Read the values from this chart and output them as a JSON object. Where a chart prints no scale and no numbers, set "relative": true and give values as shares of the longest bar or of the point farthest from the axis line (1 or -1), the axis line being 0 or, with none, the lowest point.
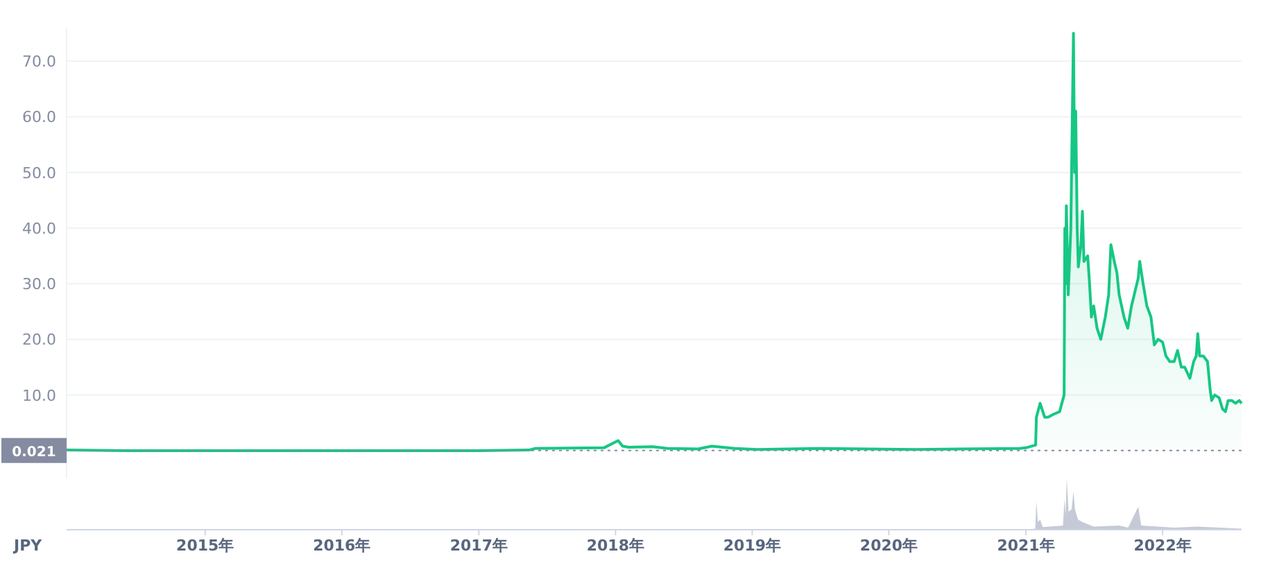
{
  "chart_data": [
    {
      "type": "area",
      "ylabel": "JPY",
      "xlim": [
        "2013-12-27",
        "2022-07-31"
      ],
      "ylim": [
        -5,
        76
      ],
      "yticks": [
        {
          "value": 10,
          "label": "10.0"
        },
        {
          "value": 20,
          "label": "20.0"
        },
        {
          "value": 30,
          "label": "30.0"
        },
        {
          "value": 40,
          "label": "40.0"
        },
        {
          "value": 50,
          "label": "50.0"
        },
        {
          "value": 60,
          "label": "60.0"
        },
        {
          "value": 70,
          "label": "70.0"
        }
      ],
      "grid": "y",
      "tick_labels": "y",
      "ref_lines": [
        {
          "axis": "y",
          "value": 0.021,
          "label": "0.021",
          "color": "#858ca2",
          "line_style": "dotted"
        }
      ],
      "series": [
        {
          "color": "#16c784",
          "x": [
            "2013-12-27",
            "2014-06-01",
            "2015-01-01",
            "2016-01-01",
            "2017-01-01",
            "2017-05-15",
            "2017-06-01",
            "2017-12-01",
            "2018-01-08",
            "2018-01-20",
            "2018-02-05",
            "2018-04-10",
            "2018-05-20",
            "2018-08-10",
            "2018-09-15",
            "2018-11-15",
            "2019-01-15",
            "2019-07-01",
            "2020-03-15",
            "2020-07-15",
            "2020-12-15",
            "2021-01-01",
            "2021-01-27",
            "2021-01-29",
            "2021-02-08",
            "2021-02-20",
            "2021-03-01",
            "2021-03-15",
            "2021-04-01",
            "2021-04-13",
            "2021-04-15",
            "2021-04-17",
            "2021-04-19",
            "2021-04-24",
            "2021-05-01",
            "2021-05-08",
            "2021-05-11",
            "2021-05-14",
            "2021-05-18",
            "2021-05-21",
            "2021-05-28",
            "2021-06-01",
            "2021-06-05",
            "2021-06-15",
            "2021-06-20",
            "2021-06-25",
            "2021-07-01",
            "2021-07-10",
            "2021-07-20",
            "2021-08-01",
            "2021-08-10",
            "2021-08-16",
            "2021-08-25",
            "2021-09-01",
            "2021-09-07",
            "2021-09-20",
            "2021-09-30",
            "2021-10-10",
            "2021-10-28",
            "2021-11-01",
            "2021-11-10",
            "2021-11-20",
            "2021-12-01",
            "2021-12-10",
            "2021-12-20",
            "2022-01-01",
            "2022-01-10",
            "2022-01-20",
            "2022-02-01",
            "2022-02-10",
            "2022-02-20",
            "2022-03-01",
            "2022-03-15",
            "2022-03-25",
            "2022-04-01",
            "2022-04-05",
            "2022-04-10",
            "2022-04-20",
            "2022-05-01",
            "2022-05-08",
            "2022-05-12",
            "2022-05-20",
            "2022-06-01",
            "2022-06-10",
            "2022-06-18",
            "2022-06-25",
            "2022-07-05",
            "2022-07-15",
            "2022-07-25",
            "2022-07-31"
          ],
          "values": [
            0.1,
            0,
            0,
            0,
            0,
            0.1,
            0.4,
            0.5,
            1.8,
            0.8,
            0.6,
            0.7,
            0.4,
            0.3,
            0.8,
            0.4,
            0.2,
            0.4,
            0.2,
            0.3,
            0.4,
            0.5,
            1,
            6,
            8.5,
            6,
            6,
            6.5,
            7,
            10,
            40,
            30,
            44,
            28,
            40,
            75,
            50,
            61,
            40,
            33,
            37,
            43,
            34,
            35,
            30,
            24,
            26,
            22,
            20,
            24,
            28,
            37,
            34,
            32,
            28,
            24,
            22,
            26,
            31,
            34,
            30,
            26,
            24,
            19,
            20,
            19.5,
            17,
            16,
            16,
            18,
            15,
            15,
            13,
            16,
            17,
            21,
            17,
            17,
            16,
            11,
            9,
            10,
            9.5,
            7.5,
            7,
            9,
            9,
            8.5,
            9,
            8.5
          ]
        }
      ]
    },
    {
      "type": "area",
      "relative": true,
      "xlim": [
        "2013-12-27",
        "2022-07-31"
      ],
      "xticks": [
        {
          "value": "2015-01-01",
          "label": "2015年"
        },
        {
          "value": "2016-01-01",
          "label": "2016年"
        },
        {
          "value": "2017-01-01",
          "label": "2017年"
        },
        {
          "value": "2018-01-01",
          "label": "2018年"
        },
        {
          "value": "2019-01-01",
          "label": "2019年"
        },
        {
          "value": "2020-01-01",
          "label": "2020年"
        },
        {
          "value": "2021-01-01",
          "label": "2021年"
        },
        {
          "value": "2022-01-01",
          "label": "2022年"
        }
      ],
      "tick_labels": "x",
      "series": [
        {
          "color": "#c5cad6",
          "x": [
            "2013-12-27",
            "2020-12-20",
            "2021-01-26",
            "2021-01-29",
            "2021-02-02",
            "2021-02-08",
            "2021-02-15",
            "2021-04-10",
            "2021-04-14",
            "2021-04-17",
            "2021-04-20",
            "2021-04-25",
            "2021-05-03",
            "2021-05-08",
            "2021-05-12",
            "2021-05-20",
            "2021-06-01",
            "2021-07-01",
            "2021-09-07",
            "2021-10-01",
            "2021-10-28",
            "2021-11-05",
            "2022-02-01",
            "2022-04-05",
            "2022-07-31"
          ],
          "values": [
            0,
            0,
            0.02,
            0.55,
            0.15,
            0.2,
            0.05,
            0.08,
            0.6,
            0.3,
            1,
            0.35,
            0.4,
            0.75,
            0.4,
            0.2,
            0.15,
            0.06,
            0.08,
            0.04,
            0.45,
            0.08,
            0.04,
            0.06,
            0.02
          ]
        }
      ]
    }
  ]
}
